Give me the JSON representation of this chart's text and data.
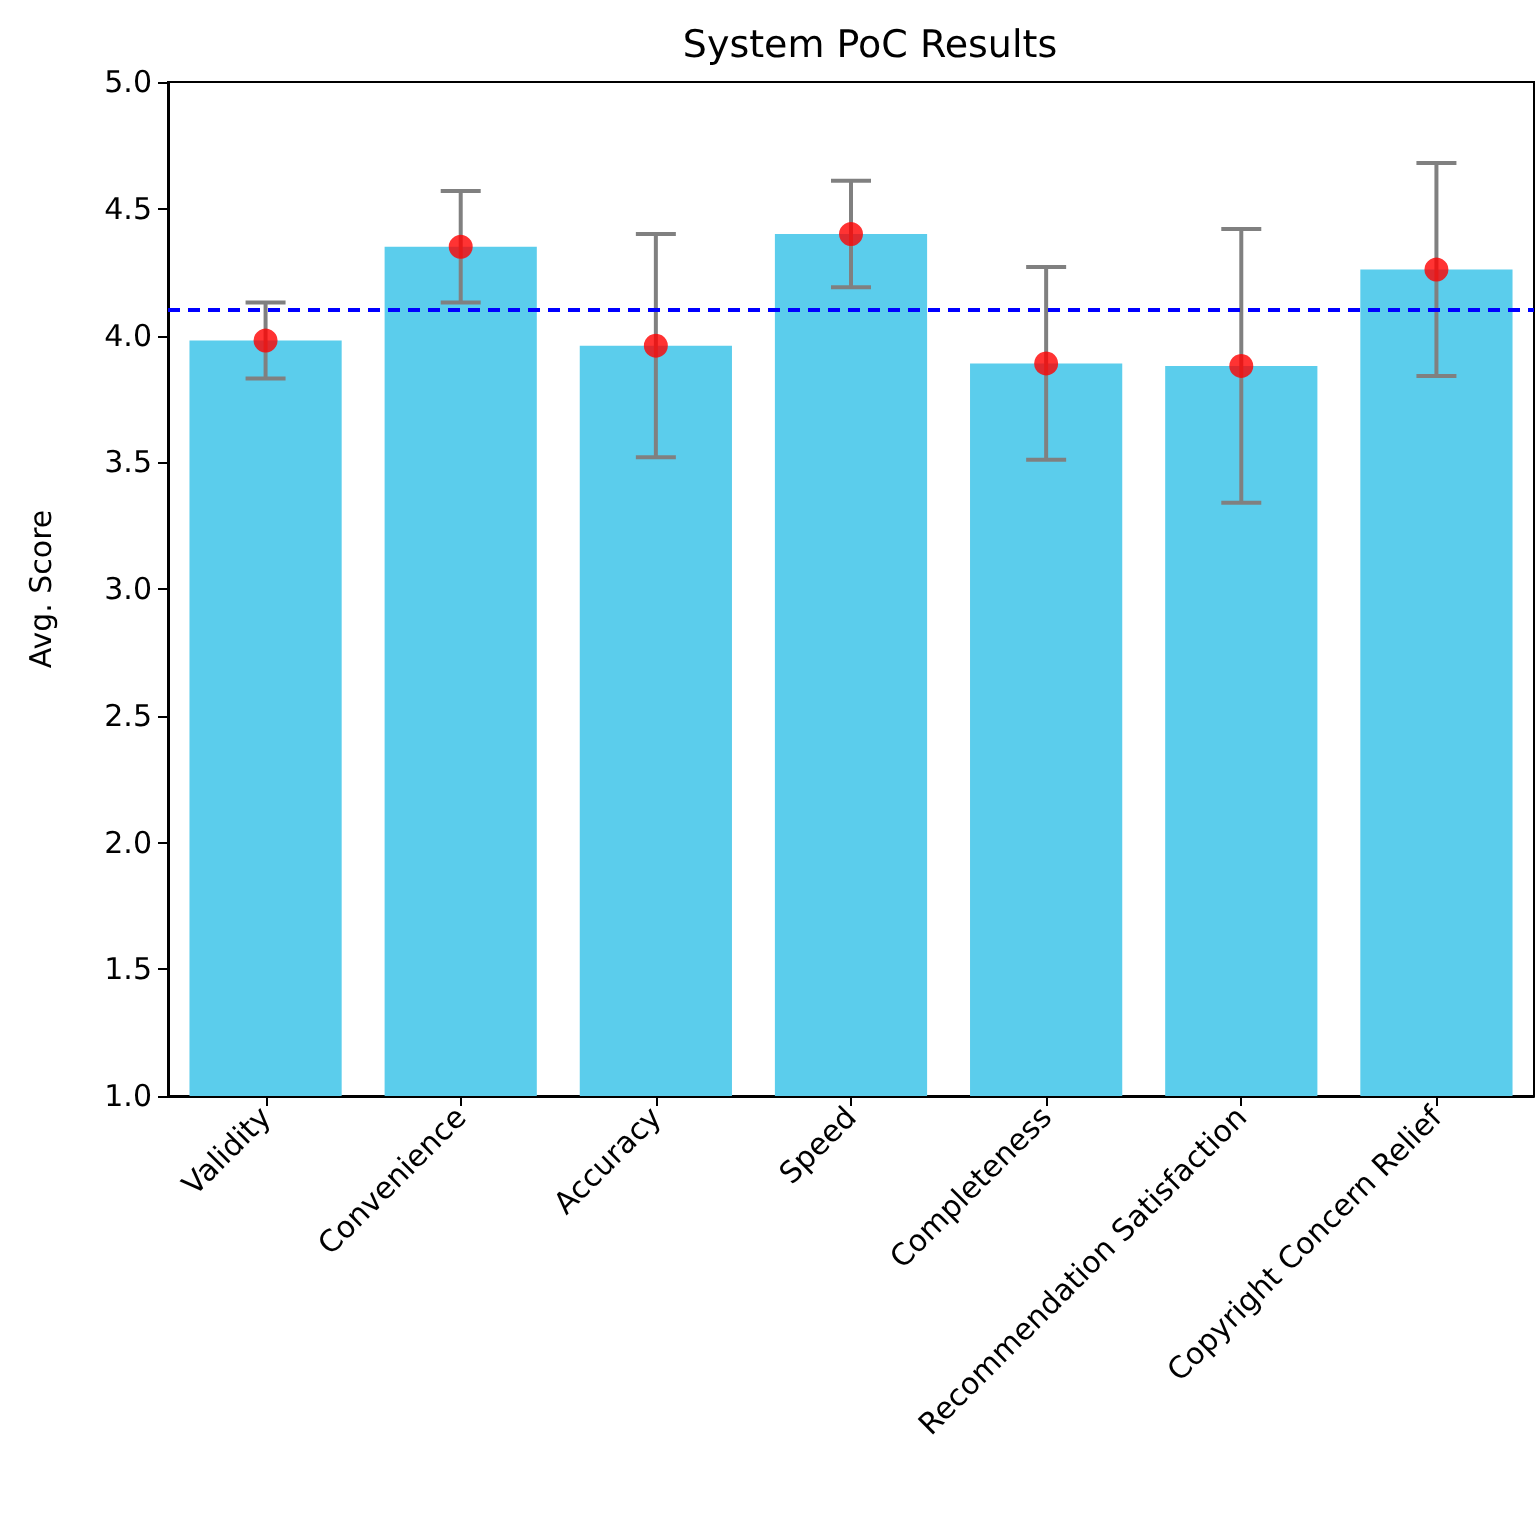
{
  "chart_data": {
    "type": "bar",
    "title": "System PoC Results",
    "ylabel": "Avg. Score",
    "categories": [
      "Validity",
      "Convenience",
      "Accuracy",
      "Speed",
      "Completeness",
      "Recommendation Satisfaction",
      "Copyright Concern Relief"
    ],
    "series": [
      {
        "color": "#5bcdec",
        "values": [
          3.98,
          4.35,
          3.96,
          4.4,
          3.89,
          3.88,
          4.26
        ],
        "errors": [
          0.15,
          0.22,
          0.44,
          0.21,
          0.38,
          0.54,
          0.42
        ]
      },
      {
        "type": "scatter",
        "color": "#ff0000",
        "marker": "circle",
        "x": [
          "Validity",
          "Convenience",
          "Accuracy",
          "Speed",
          "Completeness",
          "Recommendation Satisfaction",
          "Copyright Concern Relief"
        ],
        "values": [
          3.98,
          4.35,
          3.96,
          4.4,
          3.89,
          3.88,
          4.26
        ]
      }
    ],
    "ylim": [
      1.0,
      5.0
    ],
    "yticks": [
      {
        "value": 1,
        "label": "1.0"
      },
      {
        "value": 1.5,
        "label": "1.5"
      },
      {
        "value": 2,
        "label": "2.0"
      },
      {
        "value": 2.5,
        "label": "2.5"
      },
      {
        "value": 3,
        "label": "3.0"
      },
      {
        "value": 3.5,
        "label": "3.5"
      },
      {
        "value": 4,
        "label": "4.0"
      },
      {
        "value": 4.5,
        "label": "4.5"
      },
      {
        "value": 5,
        "label": "5.0"
      }
    ],
    "ref_lines": [
      {
        "axis": "y",
        "value": 4.1,
        "color": "#0000ff",
        "line_style": "dashed"
      }
    ],
    "grid": false
  }
}
